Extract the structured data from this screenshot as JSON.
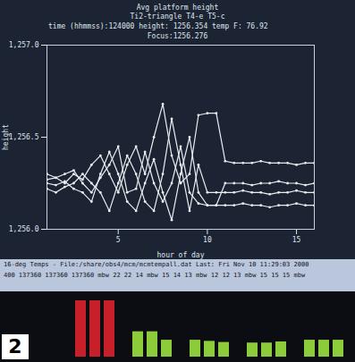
{
  "chart_data": [
    {
      "type": "line",
      "title": "Avg platform height",
      "subtitle": "Ti2-triangle  T4-e  T5-c",
      "annotations": [
        "time (hhmmss):124000  height: 1256.354  temp F: 76.92",
        "Focus:1256.276"
      ],
      "x_label": "hour of day",
      "y_label": "height",
      "x": [
        1,
        1.5,
        2,
        2.5,
        3,
        3.5,
        4,
        4.5,
        5,
        5.5,
        6,
        6.5,
        7,
        7.5,
        8,
        8.5,
        9,
        9.5,
        10,
        10.5,
        11,
        11.5,
        12,
        12.5,
        13,
        13.5,
        14,
        14.5,
        15,
        15.5,
        16
      ],
      "series": [
        {
          "color": "#e8eef0",
          "values": [
            1256.27,
            1256.28,
            1256.25,
            1256.3,
            1256.27,
            1256.35,
            1256.4,
            1256.3,
            1256.2,
            1256.35,
            1256.45,
            1256.3,
            1256.5,
            1256.68,
            1256.4,
            1256.25,
            1256.3,
            1256.62,
            1256.63,
            1256.63,
            1256.37,
            1256.36,
            1256.36,
            1256.36,
            1256.37,
            1256.36,
            1256.36,
            1256.36,
            1256.35,
            1256.36,
            1256.36
          ]
        },
        {
          "color": "#e8eef0",
          "values": [
            1256.25,
            1256.24,
            1256.26,
            1256.22,
            1256.2,
            1256.15,
            1256.3,
            1256.42,
            1256.3,
            1256.15,
            1256.1,
            1256.25,
            1256.38,
            1256.2,
            1256.05,
            1256.3,
            1256.5,
            1256.2,
            1256.13,
            1256.13,
            1256.25,
            1256.25,
            1256.25,
            1256.24,
            1256.25,
            1256.25,
            1256.26,
            1256.25,
            1256.25,
            1256.24,
            1256.25
          ]
        },
        {
          "color": "#e8eef0",
          "values": [
            1256.22,
            1256.2,
            1256.23,
            1256.25,
            1256.3,
            1256.25,
            1256.2,
            1256.1,
            1256.25,
            1256.4,
            1256.3,
            1256.15,
            1256.1,
            1256.3,
            1256.6,
            1256.35,
            1256.1,
            1256.35,
            1256.2,
            1256.2,
            1256.2,
            1256.2,
            1256.21,
            1256.2,
            1256.2,
            1256.19,
            1256.2,
            1256.2,
            1256.21,
            1256.2,
            1256.2
          ]
        },
        {
          "color": "#e8eef0",
          "values": [
            1256.3,
            1256.28,
            1256.3,
            1256.32,
            1256.25,
            1256.2,
            1256.28,
            1256.35,
            1256.45,
            1256.2,
            1256.22,
            1256.42,
            1256.25,
            1256.15,
            1256.25,
            1256.45,
            1256.2,
            1256.14,
            1256.13,
            1256.13,
            1256.13,
            1256.13,
            1256.14,
            1256.13,
            1256.13,
            1256.12,
            1256.13,
            1256.13,
            1256.14,
            1256.13,
            1256.13
          ]
        }
      ],
      "xlim": [
        1,
        16
      ],
      "xticks": [
        5,
        10,
        15
      ],
      "ylim": [
        1256,
        1257
      ],
      "yticks": [
        1256,
        1256.5,
        1257
      ],
      "marker": "dot",
      "grid": false
    },
    {
      "type": "bar",
      "title": "16-deg Temps - File:/share/obs4/mcm/mcmtempall.dat Last: Fri Nov 10 11:29:03 2000",
      "subtitle": "400  137360 137360 137360 mbw   22 22 14 mbw   15 14 13 mbw   12 12 13 mbw   15 15 15 mbw",
      "categories": [
        null,
        null,
        null,
        null,
        null,
        null,
        null,
        null,
        null,
        null,
        null,
        null,
        null,
        null,
        null,
        null,
        null,
        null,
        null
      ],
      "values": [
        100,
        100,
        100,
        null,
        45,
        45,
        30,
        null,
        30,
        28,
        26,
        null,
        25,
        25,
        27,
        null,
        30,
        30,
        30
      ],
      "colors": [
        "#c8202a",
        "#c8202a",
        "#c8202a",
        null,
        "#8ccc3a",
        "#8ccc3a",
        "#8ccc3a",
        null,
        "#8ccc3a",
        "#8ccc3a",
        "#8ccc3a",
        null,
        "#8ccc3a",
        "#8ccc3a",
        "#8ccc3a",
        null,
        "#8ccc3a",
        "#8ccc3a",
        "#8ccc3a"
      ],
      "ylim": [
        0,
        100
      ],
      "tick_labels": false,
      "grid": false
    }
  ],
  "panel_label": "2"
}
